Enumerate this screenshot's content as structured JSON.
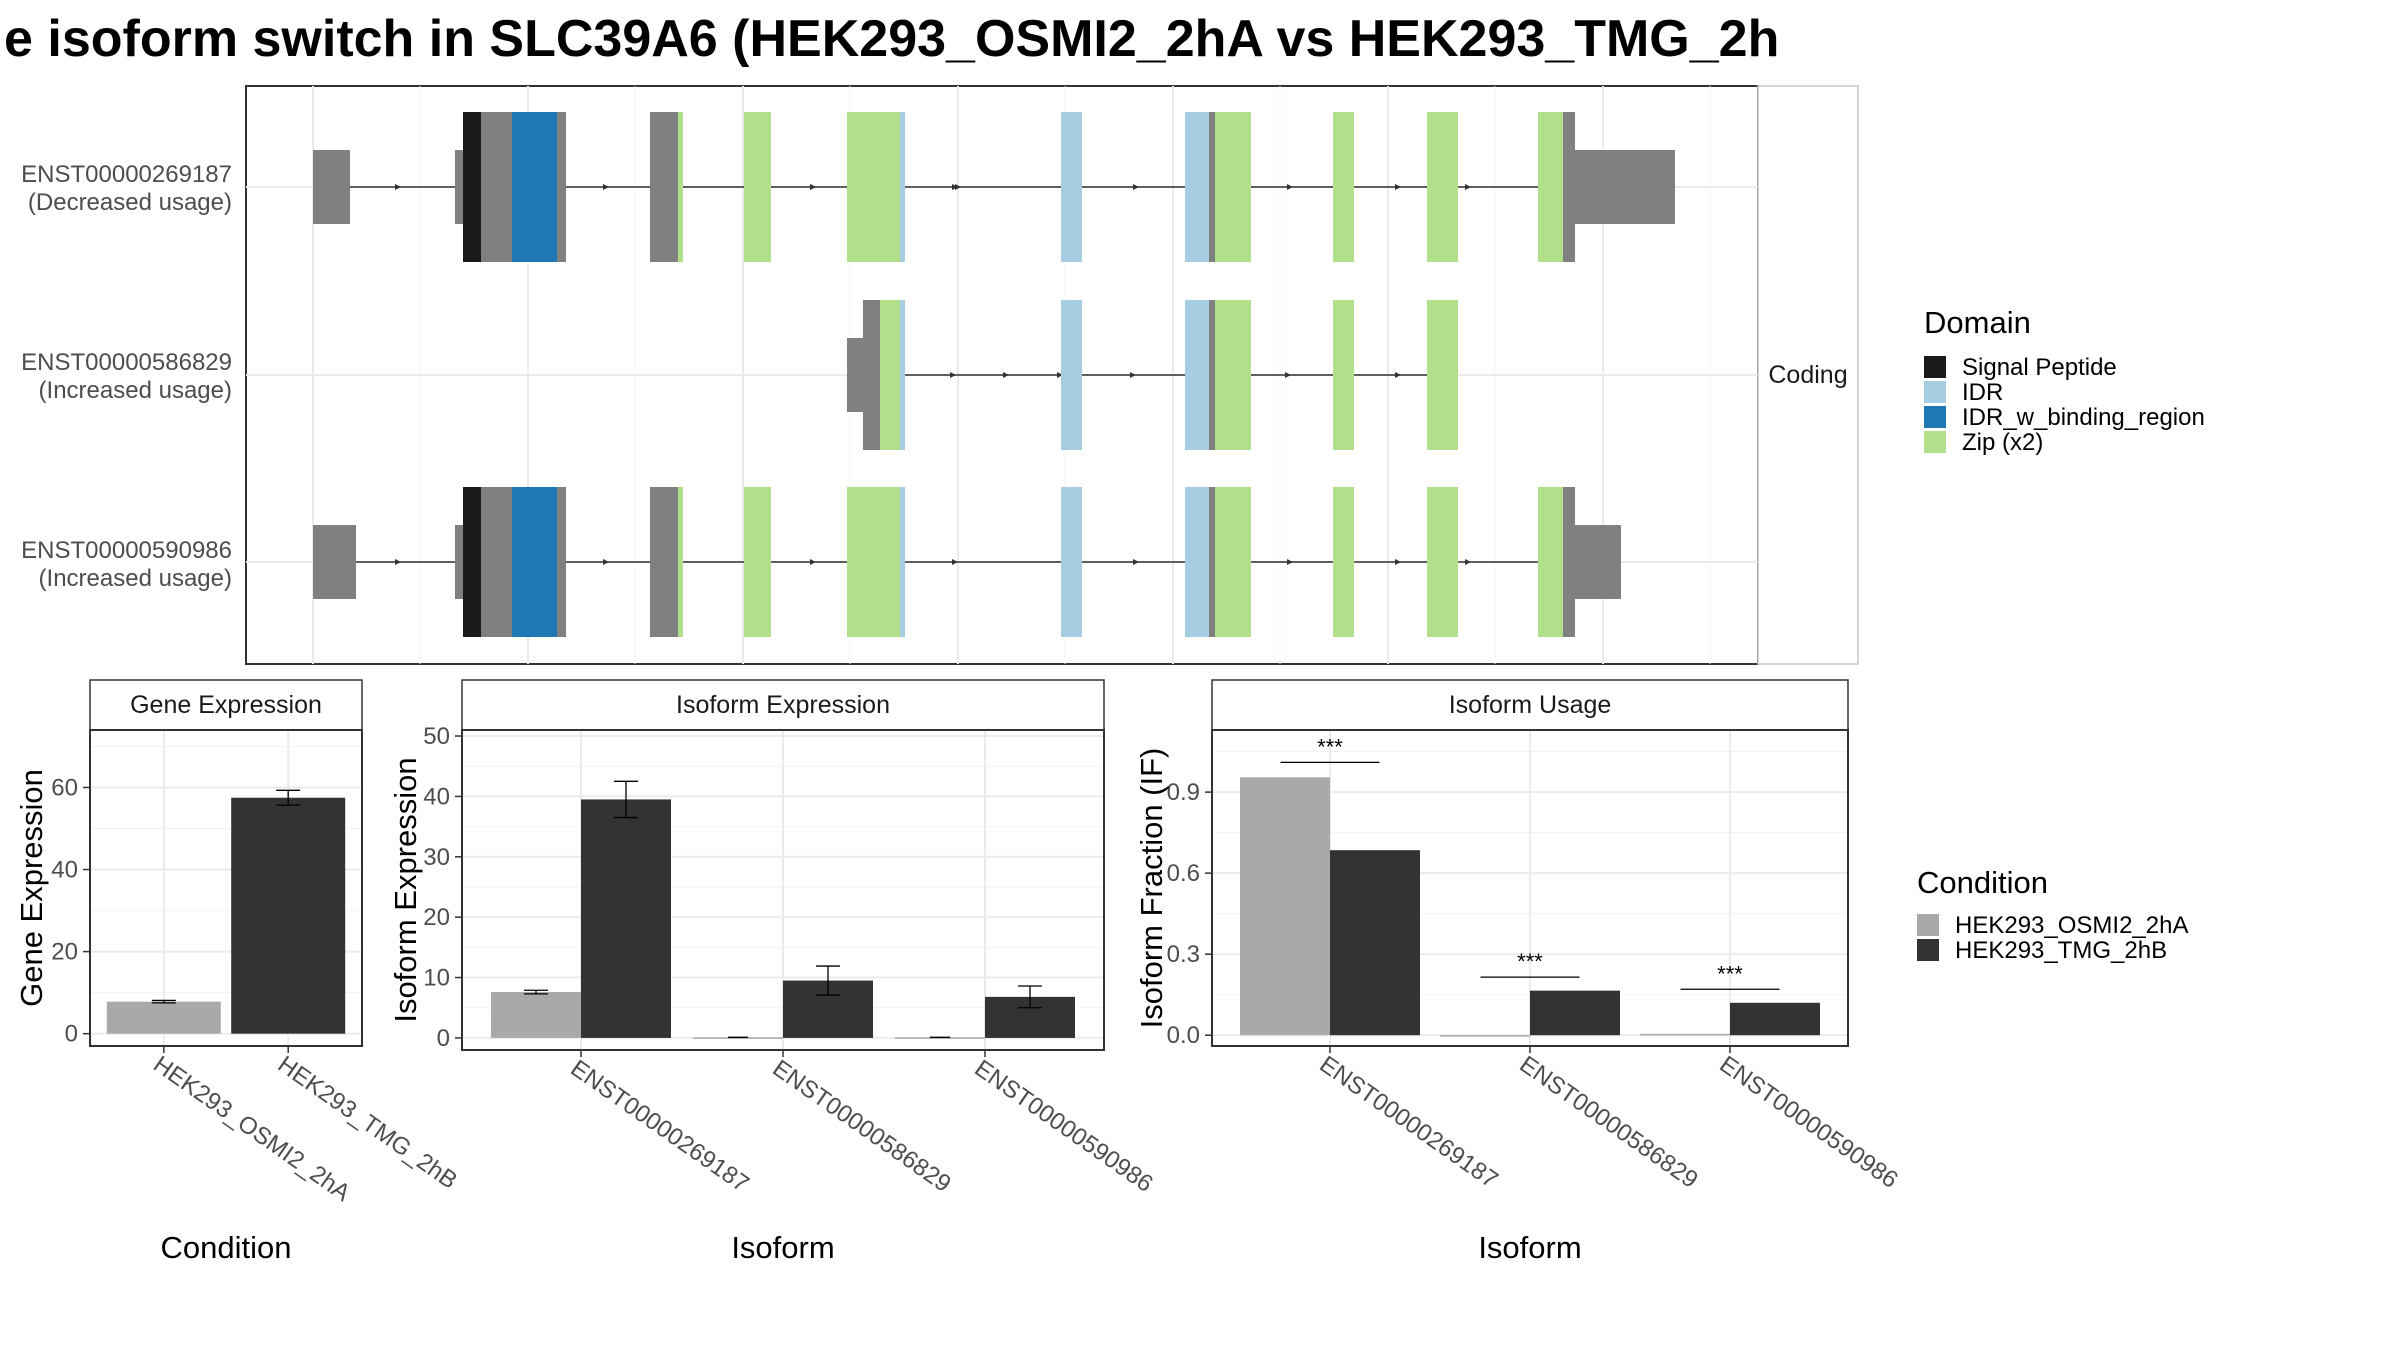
{
  "title": "e isoform switch in SLC39A6 (HEK293_OSMI2_2hA vs HEK293_TMG_2h",
  "colors": {
    "signal_peptide": "#1a1a1a",
    "idr": "#a6cee3",
    "idr_binding": "#1f78b4",
    "zip": "#b2df8a",
    "exon_noncoding": "#808080",
    "cond_a": "#a9a9a9",
    "cond_b": "#333333"
  },
  "structure": {
    "facet_label": "Coding",
    "transcripts": [
      {
        "id": "ENST00000269187",
        "usage": "(Decreased usage)"
      },
      {
        "id": "ENST00000586829",
        "usage": "(Increased usage)"
      },
      {
        "id": "ENST00000590986",
        "usage": "(Increased usage)"
      }
    ]
  },
  "legend_domain": {
    "title": "Domain",
    "items": [
      {
        "label": "Signal Peptide",
        "color": "#1a1a1a"
      },
      {
        "label": "IDR",
        "color": "#a6cee3"
      },
      {
        "label": "IDR_w_binding_region",
        "color": "#1f78b4"
      },
      {
        "label": "Zip (x2)",
        "color": "#b2df8a"
      }
    ]
  },
  "legend_condition": {
    "title": "Condition",
    "items": [
      {
        "label": "HEK293_OSMI2_2hA",
        "color": "#a9a9a9"
      },
      {
        "label": "HEK293_TMG_2hB",
        "color": "#333333"
      }
    ]
  },
  "chart_data": [
    {
      "type": "bar",
      "title": "Gene Expression",
      "xlabel": "Condition",
      "ylabel": "Gene Expression",
      "ylim": [
        -3,
        74
      ],
      "yticks": [
        0,
        20,
        40,
        60
      ],
      "categories": [
        "HEK293_OSMI2_2hA",
        "HEK293_TMG_2hB"
      ],
      "values": [
        7.8,
        57.5
      ],
      "errors": [
        0.3,
        1.8
      ]
    },
    {
      "type": "bar",
      "title": "Isoform Expression",
      "xlabel": "Isoform",
      "ylabel": "Isoform Expression",
      "ylim": [
        -2,
        51
      ],
      "yticks": [
        0,
        10,
        20,
        30,
        40,
        50
      ],
      "categories": [
        "ENST00000269187",
        "ENST00000586829",
        "ENST00000590986"
      ],
      "series": [
        {
          "name": "HEK293_OSMI2_2hA",
          "values": [
            7.6,
            0.1,
            0.1
          ],
          "errors": [
            0.3,
            0,
            0
          ]
        },
        {
          "name": "HEK293_TMG_2hB",
          "values": [
            39.5,
            9.5,
            6.8
          ],
          "errors": [
            3,
            2.4,
            1.8
          ]
        }
      ]
    },
    {
      "type": "bar",
      "title": "Isoform Usage",
      "xlabel": "Isoform",
      "ylabel": "Isoform Fraction (IF)",
      "ylim": [
        -0.04,
        1.13
      ],
      "yticks": [
        0.0,
        0.3,
        0.6,
        0.9
      ],
      "categories": [
        "ENST00000269187",
        "ENST00000586829",
        "ENST00000590986"
      ],
      "series": [
        {
          "name": "HEK293_OSMI2_2hA",
          "values": [
            0.955,
            0.0,
            0.005
          ]
        },
        {
          "name": "HEK293_TMG_2hB",
          "values": [
            0.685,
            0.165,
            0.12
          ]
        }
      ],
      "significance": [
        "***",
        "***",
        "***"
      ],
      "significance_y": [
        1.01,
        0.215,
        0.17
      ]
    }
  ]
}
